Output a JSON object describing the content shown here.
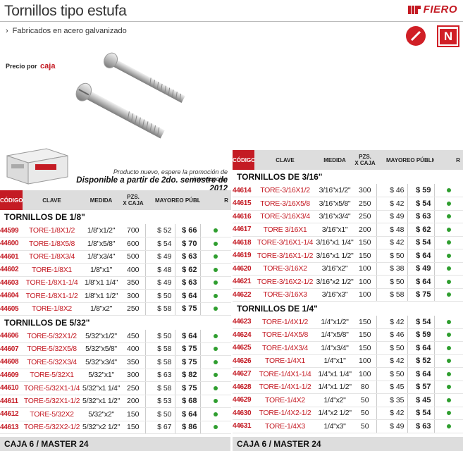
{
  "header": {
    "title": "Tornillos tipo estufa",
    "subtitle": "Fabricados en acero galvanizado",
    "brand": "FIERO",
    "badge_letter": "N",
    "price_label": "Precio por",
    "price_unit": "caja"
  },
  "notes": {
    "line1": "Producto nuevo, espere la promoción de introducción",
    "line2": "Disponible a partir de 2do. semestre de 2012"
  },
  "columns": {
    "codigo": "CÓDIGO",
    "clave": "CLAVE",
    "medida": "MEDIDA",
    "pzs": "PZS.",
    "xcaja": "X CAJA",
    "mayoreo": "MAYOREO",
    "publico": "PÚBLICO",
    "r": "R"
  },
  "left_sections": [
    {
      "title": "TORNILLOS DE 1/8\"",
      "rows": [
        {
          "codigo": "44599",
          "clave": "TORE-1/8X1/2",
          "medida": "1/8\"x1/2\"",
          "pzs": "700",
          "mayoreo": "$ 52",
          "publico": "$ 66"
        },
        {
          "codigo": "44600",
          "clave": "TORE-1/8X5/8",
          "medida": "1/8\"x5/8\"",
          "pzs": "600",
          "mayoreo": "$ 54",
          "publico": "$ 70"
        },
        {
          "codigo": "44601",
          "clave": "TORE-1/8X3/4",
          "medida": "1/8\"x3/4\"",
          "pzs": "500",
          "mayoreo": "$ 49",
          "publico": "$ 63"
        },
        {
          "codigo": "44602",
          "clave": "TORE-1/8X1",
          "medida": "1/8\"x1\"",
          "pzs": "400",
          "mayoreo": "$ 48",
          "publico": "$ 62"
        },
        {
          "codigo": "44603",
          "clave": "TORE-1/8X1-1/4",
          "medida": "1/8\"x1 1/4\"",
          "pzs": "350",
          "mayoreo": "$ 49",
          "publico": "$ 63"
        },
        {
          "codigo": "44604",
          "clave": "TORE-1/8X1-1/2",
          "medida": "1/8\"x1 1/2\"",
          "pzs": "300",
          "mayoreo": "$ 50",
          "publico": "$ 64"
        },
        {
          "codigo": "44605",
          "clave": "TORE-1/8X2",
          "medida": "1/8\"x2\"",
          "pzs": "250",
          "mayoreo": "$ 58",
          "publico": "$ 75"
        }
      ]
    },
    {
      "title": "TORNILLOS DE 5/32\"",
      "rows": [
        {
          "codigo": "44606",
          "clave": "TORE-5/32X1/2",
          "medida": "5/32\"x1/2\"",
          "pzs": "450",
          "mayoreo": "$ 50",
          "publico": "$ 64"
        },
        {
          "codigo": "44607",
          "clave": "TORE-5/32X5/8",
          "medida": "5/32\"x5/8\"",
          "pzs": "400",
          "mayoreo": "$ 58",
          "publico": "$ 75"
        },
        {
          "codigo": "44608",
          "clave": "TORE-5/32X3/4",
          "medida": "5/32\"x3/4\"",
          "pzs": "350",
          "mayoreo": "$ 58",
          "publico": "$ 75"
        },
        {
          "codigo": "44609",
          "clave": "TORE-5/32X1",
          "medida": "5/32\"x1\"",
          "pzs": "300",
          "mayoreo": "$ 63",
          "publico": "$ 82"
        },
        {
          "codigo": "44610",
          "clave": "TORE-5/32X1-1/4",
          "medida": "5/32\"x1 1/4\"",
          "pzs": "250",
          "mayoreo": "$ 58",
          "publico": "$ 75"
        },
        {
          "codigo": "44611",
          "clave": "TORE-5/32X1-1/2",
          "medida": "5/32\"x1 1/2\"",
          "pzs": "200",
          "mayoreo": "$ 53",
          "publico": "$ 68"
        },
        {
          "codigo": "44612",
          "clave": "TORE-5/32X2",
          "medida": "5/32\"x2\"",
          "pzs": "150",
          "mayoreo": "$ 50",
          "publico": "$ 64"
        },
        {
          "codigo": "44613",
          "clave": "TORE-5/32X2-1/2",
          "medida": "5/32\"x2 1/2\"",
          "pzs": "150",
          "mayoreo": "$ 67",
          "publico": "$ 86"
        }
      ]
    }
  ],
  "right_sections": [
    {
      "title": "TORNILLOS DE 3/16\"",
      "rows": [
        {
          "codigo": "44614",
          "clave": "TORE-3/16X1/2",
          "medida": "3/16\"x1/2\"",
          "pzs": "300",
          "mayoreo": "$ 46",
          "publico": "$ 59"
        },
        {
          "codigo": "44615",
          "clave": "TORE-3/16X5/8",
          "medida": "3/16\"x5/8\"",
          "pzs": "250",
          "mayoreo": "$ 42",
          "publico": "$ 54"
        },
        {
          "codigo": "44616",
          "clave": "TORE-3/16X3/4",
          "medida": "3/16\"x3/4\"",
          "pzs": "250",
          "mayoreo": "$ 49",
          "publico": "$ 63"
        },
        {
          "codigo": "44617",
          "clave": "TORE 3/16X1",
          "medida": "3/16\"x1\"",
          "pzs": "200",
          "mayoreo": "$ 48",
          "publico": "$ 62"
        },
        {
          "codigo": "44618",
          "clave": "TORE-3/16X1-1/4",
          "medida": "3/16\"x1 1/4\"",
          "pzs": "150",
          "mayoreo": "$ 42",
          "publico": "$ 54"
        },
        {
          "codigo": "44619",
          "clave": "TORE-3/16X1-1/2",
          "medida": "3/16\"x1 1/2\"",
          "pzs": "150",
          "mayoreo": "$ 50",
          "publico": "$ 64"
        },
        {
          "codigo": "44620",
          "clave": "TORE-3/16X2",
          "medida": "3/16\"x2\"",
          "pzs": "100",
          "mayoreo": "$ 38",
          "publico": "$ 49"
        },
        {
          "codigo": "44621",
          "clave": "TORE-3/16X2-1/2",
          "medida": "3/16\"x2 1/2\"",
          "pzs": "100",
          "mayoreo": "$ 50",
          "publico": "$ 64"
        },
        {
          "codigo": "44622",
          "clave": "TORE-3/16X3",
          "medida": "3/16\"x3\"",
          "pzs": "100",
          "mayoreo": "$ 58",
          "publico": "$ 75"
        }
      ]
    },
    {
      "title": "TORNILLOS DE 1/4\"",
      "rows": [
        {
          "codigo": "44623",
          "clave": "TORE-1/4X1/2",
          "medida": "1/4\"x1/2\"",
          "pzs": "150",
          "mayoreo": "$ 42",
          "publico": "$ 54"
        },
        {
          "codigo": "44624",
          "clave": "TORE-1/4X5/8",
          "medida": "1/4\"x5/8\"",
          "pzs": "150",
          "mayoreo": "$ 46",
          "publico": "$ 59"
        },
        {
          "codigo": "44625",
          "clave": "TORE-1/4X3/4",
          "medida": "1/4\"x3/4\"",
          "pzs": "150",
          "mayoreo": "$ 50",
          "publico": "$ 64"
        },
        {
          "codigo": "44626",
          "clave": "TORE-1/4X1",
          "medida": "1/4\"x1\"",
          "pzs": "100",
          "mayoreo": "$ 42",
          "publico": "$ 52"
        },
        {
          "codigo": "44627",
          "clave": "TORE-1/4X1-1/4",
          "medida": "1/4\"x1 1/4\"",
          "pzs": "100",
          "mayoreo": "$ 50",
          "publico": "$ 64"
        },
        {
          "codigo": "44628",
          "clave": "TORE-1/4X1-1/2",
          "medida": "1/4\"x1 1/2\"",
          "pzs": "80",
          "mayoreo": "$ 45",
          "publico": "$ 57"
        },
        {
          "codigo": "44629",
          "clave": "TORE-1/4X2",
          "medida": "1/4\"x2\"",
          "pzs": "50",
          "mayoreo": "$ 35",
          "publico": "$ 45"
        },
        {
          "codigo": "44630",
          "clave": "TORE-1/4X2-1/2",
          "medida": "1/4\"x2 1/2\"",
          "pzs": "50",
          "mayoreo": "$ 42",
          "publico": "$ 54"
        },
        {
          "codigo": "44631",
          "clave": "TORE-1/4X3",
          "medida": "1/4\"x3\"",
          "pzs": "50",
          "mayoreo": "$ 49",
          "publico": "$ 63"
        }
      ]
    }
  ],
  "footer": {
    "left": "CAJA 6 / MASTER 24",
    "right": "CAJA 6 / MASTER 24"
  },
  "colors": {
    "brand_red": "#c41b24",
    "available_dot": "#2f9e2f",
    "header_gray": "#dddddd"
  }
}
